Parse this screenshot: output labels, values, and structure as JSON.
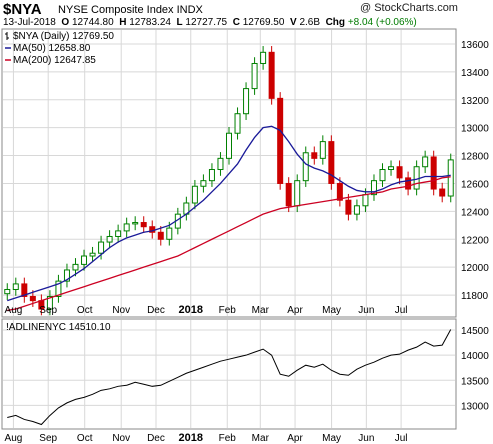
{
  "header": {
    "symbol": "$NYA",
    "name": "NYSE Composite Index  INDX",
    "brand": "@ StockCharts.com",
    "date": "13-Jul-2018",
    "o_label": "O",
    "o_value": "12744.80",
    "h_label": "H",
    "h_value": "12783.24",
    "l_label": "L",
    "l_value": "12727.75",
    "c_label": "C",
    "c_value": "12769.50",
    "v_label": "V",
    "v_value": "2.6B",
    "chg_label": "Chg",
    "chg_value": "+8.04 (+0.06%)"
  },
  "colors": {
    "up": "#008000",
    "down": "#cc0000",
    "ma50": "#1a1a99",
    "ma200": "#cc0022",
    "grid": "#d8d8d8",
    "adline": "#000000"
  },
  "chart_data": [
    {
      "type": "candlestick",
      "legend": [
        {
          "label": "$NYA (Daily) 12769.50",
          "style": "ohlc-icon"
        },
        {
          "label": "MA(50) 12658.80",
          "color": "#1a1a99"
        },
        {
          "label": "MA(200) 12647.85",
          "color": "#cc0022"
        }
      ],
      "x_ticks": [
        "Aug",
        "Sep",
        "Oct",
        "Nov",
        "Dec",
        "2018",
        "Feb",
        "Mar",
        "Apr",
        "May",
        "Jun",
        "Jul"
      ],
      "x_tick_pos": [
        6,
        26,
        47,
        68,
        88,
        108,
        129,
        148,
        168,
        189,
        209,
        229
      ],
      "n_weeks": 53,
      "ylim": [
        11650,
        13700
      ],
      "y_ticks": [
        11800,
        12000,
        12200,
        12400,
        12600,
        12800,
        13000,
        13200,
        13400,
        13600
      ],
      "close_weekly": [
        11840,
        11880,
        11790,
        11760,
        11700,
        11790,
        11900,
        11980,
        12020,
        12080,
        12100,
        12180,
        12220,
        12260,
        12310,
        12320,
        12290,
        12250,
        12200,
        12280,
        12380,
        12460,
        12580,
        12620,
        12700,
        12780,
        12960,
        13100,
        13280,
        13460,
        13540,
        13210,
        12600,
        12440,
        12620,
        12820,
        12780,
        12900,
        12600,
        12480,
        12380,
        12440,
        12520,
        12620,
        12700,
        12720,
        12640,
        12560,
        12720,
        12790,
        12560,
        12510,
        12769
      ],
      "ma50_weekly": [
        11760,
        11780,
        11800,
        11820,
        11840,
        11860,
        11880,
        11910,
        11950,
        11990,
        12040,
        12090,
        12140,
        12180,
        12210,
        12230,
        12250,
        12260,
        12280,
        12300,
        12340,
        12380,
        12430,
        12480,
        12540,
        12600,
        12670,
        12740,
        12840,
        12930,
        13000,
        13010,
        12980,
        12900,
        12810,
        12740,
        12710,
        12690,
        12660,
        12620,
        12580,
        12550,
        12540,
        12540,
        12560,
        12590,
        12610,
        12620,
        12630,
        12650,
        12650,
        12650,
        12659
      ],
      "ma200_weekly": [
        11690,
        11700,
        11720,
        11740,
        11760,
        11780,
        11800,
        11820,
        11840,
        11860,
        11880,
        11900,
        11920,
        11940,
        11960,
        11980,
        12000,
        12020,
        12040,
        12060,
        12080,
        12110,
        12140,
        12170,
        12200,
        12230,
        12260,
        12290,
        12320,
        12350,
        12380,
        12400,
        12420,
        12430,
        12440,
        12450,
        12460,
        12470,
        12480,
        12490,
        12500,
        12510,
        12520,
        12530,
        12540,
        12560,
        12570,
        12580,
        12600,
        12610,
        12620,
        12640,
        12648
      ]
    },
    {
      "type": "line",
      "legend": [
        {
          "label": "!ADLINENYC 14510.10"
        }
      ],
      "ylim": [
        12550,
        14700
      ],
      "y_ticks": [
        13000,
        13500,
        14000,
        14500
      ],
      "values_weekly": [
        12760,
        12800,
        12720,
        12680,
        12620,
        12800,
        12950,
        13050,
        13120,
        13160,
        13220,
        13300,
        13330,
        13380,
        13400,
        13460,
        13420,
        13380,
        13400,
        13480,
        13560,
        13640,
        13700,
        13760,
        13820,
        13880,
        13920,
        13960,
        14000,
        14060,
        14120,
        14000,
        13620,
        13580,
        13700,
        13800,
        13760,
        13820,
        13700,
        13620,
        13600,
        13720,
        13800,
        13860,
        13940,
        14000,
        14020,
        14100,
        14160,
        14260,
        14180,
        14200,
        14510
      ]
    }
  ]
}
